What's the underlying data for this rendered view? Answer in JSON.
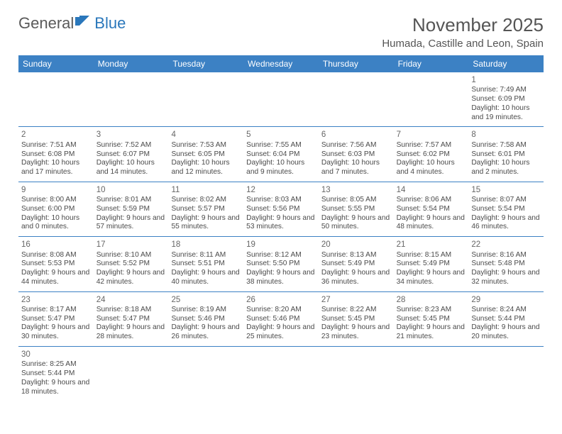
{
  "brand": {
    "general": "General",
    "blue": "Blue"
  },
  "header": {
    "month_title": "November 2025",
    "location": "Humada, Castille and Leon, Spain"
  },
  "colors": {
    "header_bg": "#3c81c4",
    "header_text": "#ffffff",
    "row_border": "#3c81c4",
    "text": "#4a4a4a",
    "title_text": "#555555",
    "logo_gray": "#5a5a5a",
    "logo_blue": "#2a77bb",
    "background": "#ffffff"
  },
  "day_names": [
    "Sunday",
    "Monday",
    "Tuesday",
    "Wednesday",
    "Thursday",
    "Friday",
    "Saturday"
  ],
  "weeks": [
    [
      null,
      null,
      null,
      null,
      null,
      null,
      {
        "n": "1",
        "sr": "Sunrise: 7:49 AM",
        "ss": "Sunset: 6:09 PM",
        "dl": "Daylight: 10 hours and 19 minutes."
      }
    ],
    [
      {
        "n": "2",
        "sr": "Sunrise: 7:51 AM",
        "ss": "Sunset: 6:08 PM",
        "dl": "Daylight: 10 hours and 17 minutes."
      },
      {
        "n": "3",
        "sr": "Sunrise: 7:52 AM",
        "ss": "Sunset: 6:07 PM",
        "dl": "Daylight: 10 hours and 14 minutes."
      },
      {
        "n": "4",
        "sr": "Sunrise: 7:53 AM",
        "ss": "Sunset: 6:05 PM",
        "dl": "Daylight: 10 hours and 12 minutes."
      },
      {
        "n": "5",
        "sr": "Sunrise: 7:55 AM",
        "ss": "Sunset: 6:04 PM",
        "dl": "Daylight: 10 hours and 9 minutes."
      },
      {
        "n": "6",
        "sr": "Sunrise: 7:56 AM",
        "ss": "Sunset: 6:03 PM",
        "dl": "Daylight: 10 hours and 7 minutes."
      },
      {
        "n": "7",
        "sr": "Sunrise: 7:57 AM",
        "ss": "Sunset: 6:02 PM",
        "dl": "Daylight: 10 hours and 4 minutes."
      },
      {
        "n": "8",
        "sr": "Sunrise: 7:58 AM",
        "ss": "Sunset: 6:01 PM",
        "dl": "Daylight: 10 hours and 2 minutes."
      }
    ],
    [
      {
        "n": "9",
        "sr": "Sunrise: 8:00 AM",
        "ss": "Sunset: 6:00 PM",
        "dl": "Daylight: 10 hours and 0 minutes."
      },
      {
        "n": "10",
        "sr": "Sunrise: 8:01 AM",
        "ss": "Sunset: 5:59 PM",
        "dl": "Daylight: 9 hours and 57 minutes."
      },
      {
        "n": "11",
        "sr": "Sunrise: 8:02 AM",
        "ss": "Sunset: 5:57 PM",
        "dl": "Daylight: 9 hours and 55 minutes."
      },
      {
        "n": "12",
        "sr": "Sunrise: 8:03 AM",
        "ss": "Sunset: 5:56 PM",
        "dl": "Daylight: 9 hours and 53 minutes."
      },
      {
        "n": "13",
        "sr": "Sunrise: 8:05 AM",
        "ss": "Sunset: 5:55 PM",
        "dl": "Daylight: 9 hours and 50 minutes."
      },
      {
        "n": "14",
        "sr": "Sunrise: 8:06 AM",
        "ss": "Sunset: 5:54 PM",
        "dl": "Daylight: 9 hours and 48 minutes."
      },
      {
        "n": "15",
        "sr": "Sunrise: 8:07 AM",
        "ss": "Sunset: 5:54 PM",
        "dl": "Daylight: 9 hours and 46 minutes."
      }
    ],
    [
      {
        "n": "16",
        "sr": "Sunrise: 8:08 AM",
        "ss": "Sunset: 5:53 PM",
        "dl": "Daylight: 9 hours and 44 minutes."
      },
      {
        "n": "17",
        "sr": "Sunrise: 8:10 AM",
        "ss": "Sunset: 5:52 PM",
        "dl": "Daylight: 9 hours and 42 minutes."
      },
      {
        "n": "18",
        "sr": "Sunrise: 8:11 AM",
        "ss": "Sunset: 5:51 PM",
        "dl": "Daylight: 9 hours and 40 minutes."
      },
      {
        "n": "19",
        "sr": "Sunrise: 8:12 AM",
        "ss": "Sunset: 5:50 PM",
        "dl": "Daylight: 9 hours and 38 minutes."
      },
      {
        "n": "20",
        "sr": "Sunrise: 8:13 AM",
        "ss": "Sunset: 5:49 PM",
        "dl": "Daylight: 9 hours and 36 minutes."
      },
      {
        "n": "21",
        "sr": "Sunrise: 8:15 AM",
        "ss": "Sunset: 5:49 PM",
        "dl": "Daylight: 9 hours and 34 minutes."
      },
      {
        "n": "22",
        "sr": "Sunrise: 8:16 AM",
        "ss": "Sunset: 5:48 PM",
        "dl": "Daylight: 9 hours and 32 minutes."
      }
    ],
    [
      {
        "n": "23",
        "sr": "Sunrise: 8:17 AM",
        "ss": "Sunset: 5:47 PM",
        "dl": "Daylight: 9 hours and 30 minutes."
      },
      {
        "n": "24",
        "sr": "Sunrise: 8:18 AM",
        "ss": "Sunset: 5:47 PM",
        "dl": "Daylight: 9 hours and 28 minutes."
      },
      {
        "n": "25",
        "sr": "Sunrise: 8:19 AM",
        "ss": "Sunset: 5:46 PM",
        "dl": "Daylight: 9 hours and 26 minutes."
      },
      {
        "n": "26",
        "sr": "Sunrise: 8:20 AM",
        "ss": "Sunset: 5:46 PM",
        "dl": "Daylight: 9 hours and 25 minutes."
      },
      {
        "n": "27",
        "sr": "Sunrise: 8:22 AM",
        "ss": "Sunset: 5:45 PM",
        "dl": "Daylight: 9 hours and 23 minutes."
      },
      {
        "n": "28",
        "sr": "Sunrise: 8:23 AM",
        "ss": "Sunset: 5:45 PM",
        "dl": "Daylight: 9 hours and 21 minutes."
      },
      {
        "n": "29",
        "sr": "Sunrise: 8:24 AM",
        "ss": "Sunset: 5:44 PM",
        "dl": "Daylight: 9 hours and 20 minutes."
      }
    ],
    [
      {
        "n": "30",
        "sr": "Sunrise: 8:25 AM",
        "ss": "Sunset: 5:44 PM",
        "dl": "Daylight: 9 hours and 18 minutes."
      },
      null,
      null,
      null,
      null,
      null,
      null
    ]
  ]
}
